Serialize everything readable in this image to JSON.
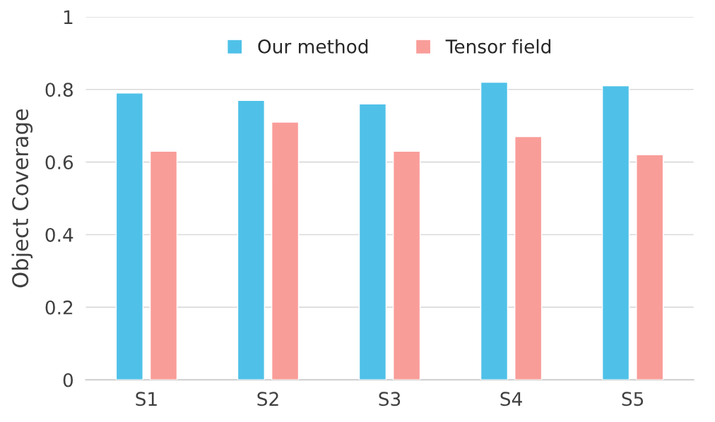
{
  "chart_data": {
    "type": "bar",
    "ylabel": "Object Coverage",
    "categories": [
      "S1",
      "S2",
      "S3",
      "S4",
      "S5"
    ],
    "series": [
      {
        "name": "Our method",
        "color": "#4fc1e8",
        "values": [
          0.79,
          0.77,
          0.76,
          0.82,
          0.81
        ]
      },
      {
        "name": "Tensor field",
        "color": "#f99d99",
        "values": [
          0.63,
          0.71,
          0.63,
          0.67,
          0.62
        ]
      }
    ],
    "ylim": [
      0,
      1
    ],
    "yticks": [
      0,
      0.2,
      0.4,
      0.6,
      0.8,
      1
    ],
    "grid": "y",
    "legend": "top"
  }
}
